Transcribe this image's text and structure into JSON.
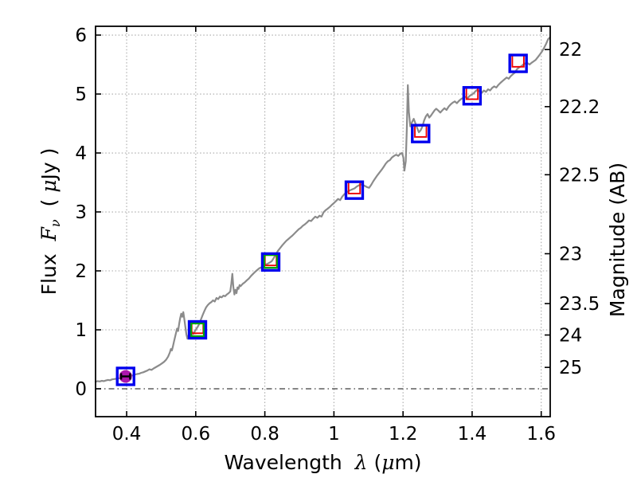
{
  "figure": {
    "background": "#ffffff",
    "frame_color": "#000000",
    "grid_color": "#a8a8a8",
    "zero_line_color": "#3c3c3c"
  },
  "chart_data": {
    "type": "line",
    "title": "",
    "xlabel_parts": [
      {
        "t": "Wavelength  ",
        "style": "normal"
      },
      {
        "t": "λ",
        "style": "math"
      },
      {
        "t": " (",
        "style": "normal"
      },
      {
        "t": "μ",
        "style": "math"
      },
      {
        "t": "m)",
        "style": "normal"
      }
    ],
    "ylabel_left_parts": [
      {
        "t": "Flux  ",
        "style": "normal"
      },
      {
        "t": "F",
        "style": "math"
      },
      {
        "t": "ν",
        "style": "mathsub"
      },
      {
        "t": "  ( ",
        "style": "normal"
      },
      {
        "t": "μ",
        "style": "math"
      },
      {
        "t": "Jy )",
        "style": "normal"
      }
    ],
    "ylabel_right": "Magnitude (AB)",
    "xlim": [
      0.31,
      1.626
    ],
    "ylim": [
      -0.473,
      6.149
    ],
    "x_ticks": [
      0.4,
      0.6,
      0.8,
      1.0,
      1.2,
      1.4,
      1.6
    ],
    "x_tick_labels": [
      "0.4",
      "0.6",
      "0.8",
      "1",
      "1.2",
      "1.4",
      "1.6"
    ],
    "y_ticks_left": [
      0,
      1,
      2,
      3,
      4,
      5,
      6
    ],
    "y_tick_left_labels": [
      "0",
      "1",
      "2",
      "3",
      "4",
      "5",
      "6"
    ],
    "y_ticks_right": [
      {
        "label": "22",
        "flux": 5.754
      },
      {
        "label": "22.2",
        "flux": 4.786
      },
      {
        "label": "22.5",
        "flux": 3.631
      },
      {
        "label": "23",
        "flux": 2.291
      },
      {
        "label": "23.5",
        "flux": 1.445
      },
      {
        "label": "24",
        "flux": 0.912
      },
      {
        "label": "25",
        "flux": 0.363
      }
    ],
    "grid": {
      "style": "dotted",
      "x_at": [
        0.4,
        0.6,
        0.8,
        1.0,
        1.2,
        1.4,
        1.6
      ],
      "y_at": [
        1,
        2,
        3,
        4,
        5,
        6
      ]
    },
    "zero_line": {
      "flux": 0.0,
      "style": "dash-dot"
    },
    "series": [
      {
        "name": "model-spectrum",
        "type": "line",
        "color": "#8b8b8b",
        "width": 2.2,
        "points": [
          [
            0.31,
            0.12
          ],
          [
            0.316,
            0.13
          ],
          [
            0.322,
            0.125
          ],
          [
            0.328,
            0.135
          ],
          [
            0.334,
            0.13
          ],
          [
            0.34,
            0.14
          ],
          [
            0.346,
            0.15
          ],
          [
            0.352,
            0.145
          ],
          [
            0.358,
            0.16
          ],
          [
            0.364,
            0.165
          ],
          [
            0.37,
            0.17
          ],
          [
            0.376,
            0.18
          ],
          [
            0.382,
            0.175
          ],
          [
            0.388,
            0.195
          ],
          [
            0.394,
            0.205
          ],
          [
            0.4,
            0.215
          ],
          [
            0.406,
            0.22
          ],
          [
            0.412,
            0.23
          ],
          [
            0.418,
            0.225
          ],
          [
            0.424,
            0.24
          ],
          [
            0.43,
            0.25
          ],
          [
            0.436,
            0.255
          ],
          [
            0.442,
            0.27
          ],
          [
            0.448,
            0.28
          ],
          [
            0.454,
            0.295
          ],
          [
            0.46,
            0.31
          ],
          [
            0.466,
            0.33
          ],
          [
            0.472,
            0.32
          ],
          [
            0.478,
            0.345
          ],
          [
            0.484,
            0.365
          ],
          [
            0.49,
            0.385
          ],
          [
            0.496,
            0.405
          ],
          [
            0.502,
            0.43
          ],
          [
            0.508,
            0.455
          ],
          [
            0.514,
            0.49
          ],
          [
            0.52,
            0.545
          ],
          [
            0.525,
            0.615
          ],
          [
            0.528,
            0.675
          ],
          [
            0.531,
            0.65
          ],
          [
            0.534,
            0.72
          ],
          [
            0.537,
            0.8
          ],
          [
            0.54,
            0.875
          ],
          [
            0.543,
            0.95
          ],
          [
            0.546,
            1.02
          ],
          [
            0.549,
            0.98
          ],
          [
            0.552,
            1.1
          ],
          [
            0.555,
            1.2
          ],
          [
            0.558,
            1.275
          ],
          [
            0.561,
            1.22
          ],
          [
            0.564,
            1.3
          ],
          [
            0.567,
            1.18
          ],
          [
            0.57,
            1.05
          ],
          [
            0.573,
            0.92
          ],
          [
            0.576,
            0.85
          ],
          [
            0.579,
            0.9
          ],
          [
            0.582,
            0.86
          ],
          [
            0.585,
            0.93
          ],
          [
            0.588,
            0.9
          ],
          [
            0.591,
            0.955
          ],
          [
            0.594,
            0.93
          ],
          [
            0.597,
            0.97
          ],
          [
            0.6,
            1.0
          ],
          [
            0.605,
            1.045
          ],
          [
            0.61,
            1.1
          ],
          [
            0.615,
            1.175
          ],
          [
            0.62,
            1.25
          ],
          [
            0.625,
            1.32
          ],
          [
            0.63,
            1.38
          ],
          [
            0.635,
            1.42
          ],
          [
            0.64,
            1.45
          ],
          [
            0.645,
            1.47
          ],
          [
            0.65,
            1.5
          ],
          [
            0.655,
            1.48
          ],
          [
            0.66,
            1.54
          ],
          [
            0.665,
            1.52
          ],
          [
            0.67,
            1.565
          ],
          [
            0.675,
            1.55
          ],
          [
            0.68,
            1.58
          ],
          [
            0.685,
            1.57
          ],
          [
            0.69,
            1.6
          ],
          [
            0.695,
            1.62
          ],
          [
            0.7,
            1.65
          ],
          [
            0.703,
            1.78
          ],
          [
            0.706,
            1.95
          ],
          [
            0.709,
            1.72
          ],
          [
            0.712,
            1.6
          ],
          [
            0.715,
            1.68
          ],
          [
            0.718,
            1.62
          ],
          [
            0.721,
            1.72
          ],
          [
            0.724,
            1.695
          ],
          [
            0.727,
            1.76
          ],
          [
            0.73,
            1.74
          ],
          [
            0.736,
            1.78
          ],
          [
            0.742,
            1.805
          ],
          [
            0.748,
            1.84
          ],
          [
            0.754,
            1.87
          ],
          [
            0.76,
            1.915
          ],
          [
            0.766,
            1.95
          ],
          [
            0.772,
            1.985
          ],
          [
            0.778,
            2.015
          ],
          [
            0.784,
            2.045
          ],
          [
            0.79,
            2.06
          ],
          [
            0.796,
            2.085
          ],
          [
            0.802,
            2.105
          ],
          [
            0.808,
            2.12
          ],
          [
            0.814,
            2.14
          ],
          [
            0.82,
            2.165
          ],
          [
            0.826,
            2.22
          ],
          [
            0.832,
            2.28
          ],
          [
            0.838,
            2.34
          ],
          [
            0.844,
            2.385
          ],
          [
            0.85,
            2.43
          ],
          [
            0.856,
            2.47
          ],
          [
            0.862,
            2.51
          ],
          [
            0.868,
            2.54
          ],
          [
            0.874,
            2.57
          ],
          [
            0.88,
            2.6
          ],
          [
            0.886,
            2.635
          ],
          [
            0.892,
            2.67
          ],
          [
            0.898,
            2.705
          ],
          [
            0.904,
            2.73
          ],
          [
            0.91,
            2.765
          ],
          [
            0.916,
            2.79
          ],
          [
            0.922,
            2.82
          ],
          [
            0.928,
            2.855
          ],
          [
            0.934,
            2.845
          ],
          [
            0.94,
            2.885
          ],
          [
            0.946,
            2.92
          ],
          [
            0.952,
            2.9
          ],
          [
            0.958,
            2.935
          ],
          [
            0.964,
            2.92
          ],
          [
            0.97,
            2.995
          ],
          [
            0.976,
            3.03
          ],
          [
            0.982,
            3.055
          ],
          [
            0.988,
            3.085
          ],
          [
            0.994,
            3.12
          ],
          [
            1.0,
            3.15
          ],
          [
            1.006,
            3.185
          ],
          [
            1.012,
            3.22
          ],
          [
            1.018,
            3.2
          ],
          [
            1.024,
            3.26
          ],
          [
            1.03,
            3.3
          ],
          [
            1.036,
            3.33
          ],
          [
            1.042,
            3.35
          ],
          [
            1.048,
            3.37
          ],
          [
            1.054,
            3.385
          ],
          [
            1.06,
            3.4
          ],
          [
            1.066,
            3.43
          ],
          [
            1.072,
            3.45
          ],
          [
            1.078,
            3.465
          ],
          [
            1.084,
            3.455
          ],
          [
            1.09,
            3.44
          ],
          [
            1.096,
            3.42
          ],
          [
            1.102,
            3.41
          ],
          [
            1.108,
            3.46
          ],
          [
            1.114,
            3.52
          ],
          [
            1.12,
            3.575
          ],
          [
            1.126,
            3.625
          ],
          [
            1.132,
            3.67
          ],
          [
            1.138,
            3.715
          ],
          [
            1.144,
            3.765
          ],
          [
            1.15,
            3.82
          ],
          [
            1.156,
            3.86
          ],
          [
            1.162,
            3.88
          ],
          [
            1.168,
            3.925
          ],
          [
            1.174,
            3.95
          ],
          [
            1.18,
            3.97
          ],
          [
            1.186,
            3.95
          ],
          [
            1.192,
            3.985
          ],
          [
            1.197,
            4.0
          ],
          [
            1.201,
            3.92
          ],
          [
            1.204,
            3.7
          ],
          [
            1.208,
            3.86
          ],
          [
            1.211,
            4.4
          ],
          [
            1.214,
            5.15
          ],
          [
            1.217,
            4.7
          ],
          [
            1.221,
            4.45
          ],
          [
            1.226,
            4.52
          ],
          [
            1.231,
            4.58
          ],
          [
            1.236,
            4.5
          ],
          [
            1.241,
            4.42
          ],
          [
            1.246,
            4.35
          ],
          [
            1.251,
            4.385
          ],
          [
            1.256,
            4.45
          ],
          [
            1.261,
            4.55
          ],
          [
            1.266,
            4.62
          ],
          [
            1.271,
            4.66
          ],
          [
            1.276,
            4.6
          ],
          [
            1.281,
            4.635
          ],
          [
            1.286,
            4.68
          ],
          [
            1.291,
            4.72
          ],
          [
            1.296,
            4.75
          ],
          [
            1.302,
            4.72
          ],
          [
            1.308,
            4.685
          ],
          [
            1.314,
            4.725
          ],
          [
            1.32,
            4.76
          ],
          [
            1.326,
            4.73
          ],
          [
            1.332,
            4.785
          ],
          [
            1.338,
            4.825
          ],
          [
            1.344,
            4.855
          ],
          [
            1.35,
            4.875
          ],
          [
            1.356,
            4.845
          ],
          [
            1.362,
            4.885
          ],
          [
            1.368,
            4.915
          ],
          [
            1.374,
            4.935
          ],
          [
            1.38,
            4.955
          ],
          [
            1.386,
            4.925
          ],
          [
            1.392,
            4.965
          ],
          [
            1.398,
            4.99
          ],
          [
            1.404,
            5.01
          ],
          [
            1.41,
            5.05
          ],
          [
            1.416,
            5.075
          ],
          [
            1.422,
            5.04
          ],
          [
            1.428,
            5.02
          ],
          [
            1.434,
            5.06
          ],
          [
            1.44,
            5.035
          ],
          [
            1.446,
            5.08
          ],
          [
            1.452,
            5.06
          ],
          [
            1.458,
            5.105
          ],
          [
            1.464,
            5.13
          ],
          [
            1.47,
            5.11
          ],
          [
            1.476,
            5.155
          ],
          [
            1.482,
            5.19
          ],
          [
            1.488,
            5.22
          ],
          [
            1.494,
            5.25
          ],
          [
            1.5,
            5.28
          ],
          [
            1.506,
            5.26
          ],
          [
            1.512,
            5.305
          ],
          [
            1.518,
            5.335
          ],
          [
            1.524,
            5.365
          ],
          [
            1.53,
            5.42
          ],
          [
            1.536,
            5.45
          ],
          [
            1.542,
            5.47
          ],
          [
            1.548,
            5.5
          ],
          [
            1.554,
            5.52
          ],
          [
            1.56,
            5.525
          ],
          [
            1.566,
            5.5
          ],
          [
            1.572,
            5.53
          ],
          [
            1.578,
            5.555
          ],
          [
            1.584,
            5.58
          ],
          [
            1.59,
            5.625
          ],
          [
            1.596,
            5.67
          ],
          [
            1.602,
            5.72
          ],
          [
            1.608,
            5.78
          ],
          [
            1.614,
            5.85
          ],
          [
            1.62,
            5.93
          ],
          [
            1.625,
            5.96
          ]
        ]
      },
      {
        "name": "photometry-outer-blue-squares",
        "type": "scatter",
        "marker": "square-open",
        "color": "#0000ee",
        "size": 21,
        "stroke": 3.2,
        "points": [
          [
            0.397,
            0.21
          ],
          [
            0.605,
            1.0
          ],
          [
            0.817,
            2.15
          ],
          [
            1.059,
            3.37
          ],
          [
            1.251,
            4.33
          ],
          [
            1.4,
            4.97
          ],
          [
            1.533,
            5.52
          ]
        ]
      },
      {
        "name": "photometry-inner-red-squares",
        "type": "scatter",
        "marker": "square-open",
        "color": "#ee0000",
        "size": 14.5,
        "stroke": 1.9,
        "points": [
          [
            0.605,
            1.04
          ],
          [
            0.817,
            2.19
          ],
          [
            1.059,
            3.41
          ],
          [
            1.251,
            4.37
          ],
          [
            1.4,
            5.01
          ],
          [
            1.533,
            5.56
          ]
        ]
      },
      {
        "name": "photometry-inner-green-squares",
        "type": "scatter",
        "marker": "square-open",
        "color": "#00a800",
        "size": 16,
        "stroke": 2.2,
        "points": [
          [
            0.605,
            1.0
          ],
          [
            0.817,
            2.16
          ]
        ]
      },
      {
        "name": "observed-point",
        "type": "scatter",
        "marker": "circle-filled",
        "color": "#ad17ad",
        "size": 16,
        "points": [
          [
            0.397,
            0.21
          ]
        ]
      },
      {
        "name": "observed-point-errorbar",
        "type": "errorbar",
        "color": "#000000",
        "stroke": 2.4,
        "x": 0.397,
        "y": 0.21,
        "xerr": 0.013,
        "cap_half_height": 4
      }
    ]
  }
}
